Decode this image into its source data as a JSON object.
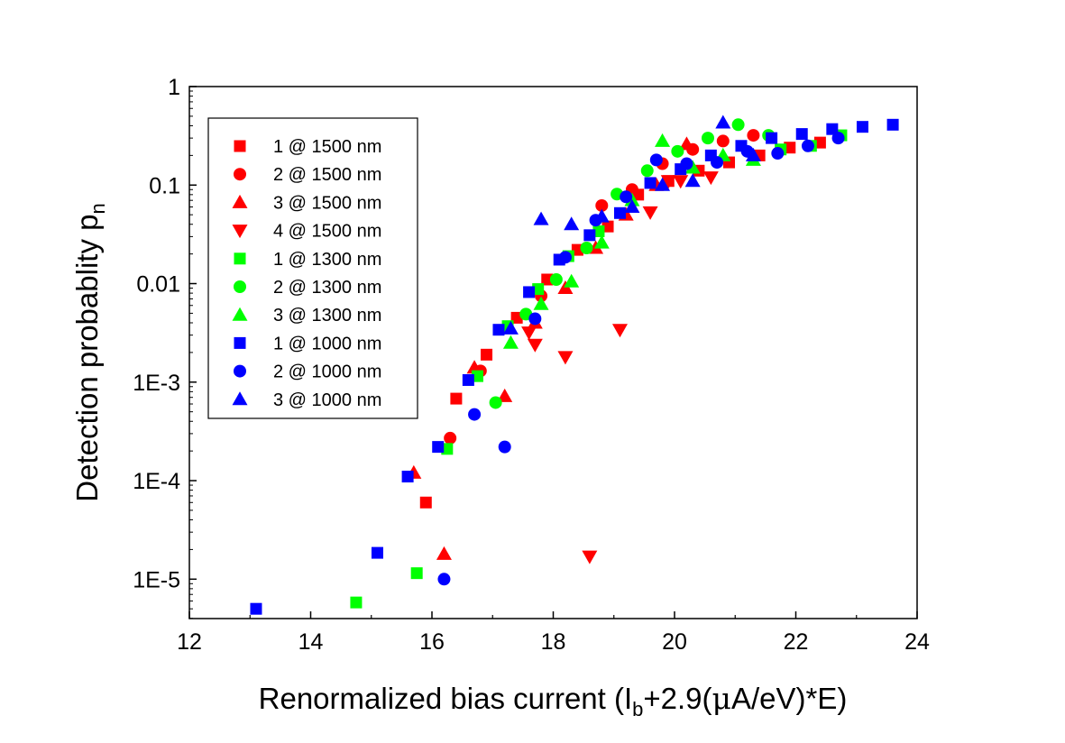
{
  "chart_data": {
    "type": "scatter",
    "title": "",
    "xlabel": {
      "pre": "Renormalized bias current (I",
      "sub": "b",
      "mid": "+2.9(",
      "mu": "μ",
      "post": "A/eV)*E)"
    },
    "ylabel": {
      "pre": "Detection probablity p",
      "sub": "n"
    },
    "x_scale": "linear",
    "y_scale": "log",
    "xlim": [
      12,
      24
    ],
    "ylim_exp": [
      -5.4,
      0
    ],
    "x_ticks": [
      {
        "value": 12,
        "label": "12"
      },
      {
        "value": 14,
        "label": "14"
      },
      {
        "value": 16,
        "label": "16"
      },
      {
        "value": 18,
        "label": "18"
      },
      {
        "value": 20,
        "label": "20"
      },
      {
        "value": 22,
        "label": "22"
      },
      {
        "value": 24,
        "label": "24"
      }
    ],
    "y_ticks": [
      {
        "exp": 0,
        "label": "1"
      },
      {
        "exp": -1,
        "label": "0.1"
      },
      {
        "exp": -2,
        "label": "0.01"
      },
      {
        "exp": -3,
        "label": "1E-3"
      },
      {
        "exp": -4,
        "label": "1E-4"
      },
      {
        "exp": -5,
        "label": "1E-5"
      }
    ],
    "legend_position": "top-left",
    "series": [
      {
        "name": "1 @ 1500 nm",
        "color": "#ff0000",
        "marker": "square",
        "points": [
          [
            15.9,
            6e-05
          ],
          [
            16.4,
            0.00068
          ],
          [
            16.9,
            0.0019
          ],
          [
            17.4,
            0.0045
          ],
          [
            17.9,
            0.011
          ],
          [
            18.4,
            0.022
          ],
          [
            18.9,
            0.038
          ],
          [
            19.4,
            0.08
          ],
          [
            19.9,
            0.11
          ],
          [
            20.4,
            0.14
          ],
          [
            20.9,
            0.17
          ],
          [
            21.4,
            0.2
          ],
          [
            21.9,
            0.24
          ],
          [
            22.4,
            0.27
          ]
        ]
      },
      {
        "name": "2 @ 1500 nm",
        "color": "#ff0000",
        "marker": "circle",
        "points": [
          [
            16.3,
            0.00027
          ],
          [
            16.8,
            0.0013
          ],
          [
            17.8,
            0.0075
          ],
          [
            18.8,
            0.062
          ],
          [
            19.3,
            0.09
          ],
          [
            19.8,
            0.165
          ],
          [
            20.3,
            0.23
          ],
          [
            20.8,
            0.28
          ],
          [
            21.3,
            0.32
          ]
        ]
      },
      {
        "name": "3 @ 1500 nm",
        "color": "#ff0000",
        "marker": "triangle-up",
        "points": [
          [
            15.7,
            0.00012
          ],
          [
            16.2,
            1.8e-05
          ],
          [
            16.7,
            0.0014
          ],
          [
            17.2,
            0.00072
          ],
          [
            17.7,
            0.004
          ],
          [
            18.2,
            0.009
          ],
          [
            18.7,
            0.023
          ],
          [
            19.2,
            0.05
          ],
          [
            19.7,
            0.1
          ],
          [
            20.2,
            0.26
          ]
        ]
      },
      {
        "name": "4 @ 1500 nm",
        "color": "#ff0000",
        "marker": "triangle-down",
        "points": [
          [
            17.6,
            0.0032
          ],
          [
            17.7,
            0.0024
          ],
          [
            18.2,
            0.0018
          ],
          [
            18.6,
            1.7e-05
          ],
          [
            19.1,
            0.0034
          ],
          [
            19.6,
            0.053
          ],
          [
            19.9,
            0.11
          ],
          [
            20.1,
            0.11
          ],
          [
            20.6,
            0.12
          ]
        ]
      },
      {
        "name": "1 @ 1300 nm",
        "color": "#00ff00",
        "marker": "square",
        "points": [
          [
            14.75,
            5.8e-06
          ],
          [
            15.75,
            1.15e-05
          ],
          [
            16.25,
            0.00021
          ],
          [
            16.75,
            0.00115
          ],
          [
            17.25,
            0.0037
          ],
          [
            17.75,
            0.0088
          ],
          [
            18.25,
            0.019
          ],
          [
            18.75,
            0.034
          ],
          [
            21.75,
            0.23
          ],
          [
            22.25,
            0.25
          ],
          [
            22.75,
            0.32
          ]
        ]
      },
      {
        "name": "2 @ 1300 nm",
        "color": "#00ff00",
        "marker": "circle",
        "points": [
          [
            17.05,
            0.00062
          ],
          [
            17.55,
            0.0049
          ],
          [
            18.05,
            0.011
          ],
          [
            18.55,
            0.023
          ],
          [
            19.05,
            0.081
          ],
          [
            19.55,
            0.14
          ],
          [
            20.05,
            0.22
          ],
          [
            20.55,
            0.3
          ],
          [
            21.05,
            0.41
          ],
          [
            21.55,
            0.32
          ]
        ]
      },
      {
        "name": "3 @ 1300 nm",
        "color": "#00ff00",
        "marker": "triangle-up",
        "points": [
          [
            17.3,
            0.0025
          ],
          [
            17.8,
            0.0062
          ],
          [
            18.3,
            0.0105
          ],
          [
            18.8,
            0.026
          ],
          [
            19.3,
            0.07
          ],
          [
            19.8,
            0.28
          ],
          [
            20.3,
            0.15
          ],
          [
            20.8,
            0.2
          ],
          [
            21.3,
            0.18
          ]
        ]
      },
      {
        "name": "1 @ 1000 nm",
        "color": "#0000ff",
        "marker": "square",
        "points": [
          [
            13.1,
            5e-06
          ],
          [
            15.1,
            1.85e-05
          ],
          [
            15.6,
            0.00011
          ],
          [
            16.1,
            0.00022
          ],
          [
            16.6,
            0.00105
          ],
          [
            17.1,
            0.0034
          ],
          [
            17.6,
            0.0082
          ],
          [
            18.1,
            0.0175
          ],
          [
            18.6,
            0.031
          ],
          [
            19.1,
            0.052
          ],
          [
            19.6,
            0.105
          ],
          [
            20.1,
            0.145
          ],
          [
            20.6,
            0.2
          ],
          [
            21.1,
            0.25
          ],
          [
            21.6,
            0.3
          ],
          [
            22.1,
            0.33
          ],
          [
            22.6,
            0.37
          ],
          [
            23.1,
            0.39
          ],
          [
            23.6,
            0.41
          ]
        ]
      },
      {
        "name": "2 @ 1000 nm",
        "color": "#0000ff",
        "marker": "circle",
        "points": [
          [
            16.2,
            1e-05
          ],
          [
            16.7,
            0.00047
          ],
          [
            17.2,
            0.00022
          ],
          [
            17.7,
            0.0044
          ],
          [
            18.2,
            0.0185
          ],
          [
            18.7,
            0.044
          ],
          [
            19.2,
            0.076
          ],
          [
            19.7,
            0.18
          ],
          [
            20.2,
            0.165
          ],
          [
            20.7,
            0.17
          ],
          [
            21.2,
            0.22
          ],
          [
            21.7,
            0.21
          ],
          [
            22.2,
            0.25
          ],
          [
            22.7,
            0.3
          ]
        ]
      },
      {
        "name": "3 @ 1000 nm",
        "color": "#0000ff",
        "marker": "triangle-up",
        "points": [
          [
            17.3,
            0.0035
          ],
          [
            17.8,
            0.045
          ],
          [
            18.3,
            0.04
          ],
          [
            18.8,
            0.048
          ],
          [
            19.3,
            0.06
          ],
          [
            19.8,
            0.1
          ],
          [
            20.3,
            0.11
          ],
          [
            20.8,
            0.43
          ],
          [
            21.3,
            0.2
          ]
        ]
      }
    ]
  }
}
